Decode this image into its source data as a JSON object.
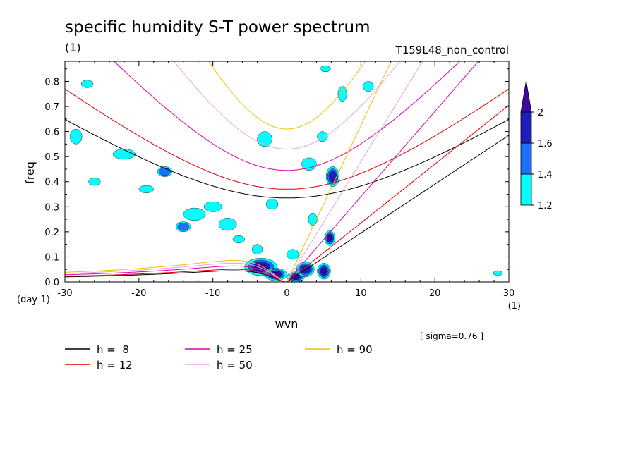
{
  "chart_data": {
    "type": "heatmap",
    "title": "specific humidity S-T power spectrum",
    "subtitle": "(1)",
    "run_label": "T159L48_non_control",
    "xlabel": "wvn",
    "ylabel": "freq",
    "x_unit": "(1)",
    "y_unit": "(day-1)",
    "note": "[ sigma=0.76 ]",
    "xlim": [
      -30,
      30
    ],
    "ylim": [
      0,
      0.88
    ],
    "x_ticks": [
      "-30",
      "-20",
      "-10",
      "0",
      "10",
      "20",
      "30"
    ],
    "x_tick_values": [
      -30,
      -20,
      -10,
      0,
      10,
      20,
      30
    ],
    "y_ticks": [
      "0.0",
      "0.1",
      "0.2",
      "0.3",
      "0.4",
      "0.5",
      "0.6",
      "0.7",
      "0.8"
    ],
    "y_tick_values": [
      0,
      0.1,
      0.2,
      0.3,
      0.4,
      0.5,
      0.6,
      0.7,
      0.8
    ],
    "colorbar": {
      "levels": [
        "1.2",
        "1.4",
        "1.6",
        "2"
      ],
      "level_values": [
        1.2,
        1.4,
        1.6,
        2.0
      ],
      "colors": [
        "#00ffff",
        "#1e6eff",
        "#1e1ebe",
        "#3c0aa0"
      ]
    },
    "legend": [
      {
        "label": "h =  8",
        "color": "#000000"
      },
      {
        "label": "h = 12",
        "color": "#e00000"
      },
      {
        "label": "h = 25",
        "color": "#e000b0"
      },
      {
        "label": "h = 50",
        "color": "#e8a0e8"
      },
      {
        "label": "h = 90",
        "color": "#f0c000"
      }
    ],
    "dispersion_lines": [
      {
        "h": 8,
        "kelvin_slope": 0.0195,
        "er_peak": 0.055,
        "ig_min": 0.335,
        "ig_slope": 0.0185
      },
      {
        "h": 12,
        "kelvin_slope": 0.0235,
        "er_peak": 0.062,
        "ig_min": 0.37,
        "ig_slope": 0.0225
      },
      {
        "h": 25,
        "kelvin_slope": 0.034,
        "er_peak": 0.078,
        "ig_min": 0.445,
        "ig_slope": 0.0325
      },
      {
        "h": 50,
        "kelvin_slope": 0.048,
        "er_peak": 0.092,
        "ig_min": 0.53,
        "ig_slope": 0.046
      },
      {
        "h": 90,
        "kelvin_slope": 0.0625,
        "er_peak": 0.105,
        "ig_min": 0.61,
        "ig_slope": 0.06
      }
    ],
    "blobs": [
      {
        "x": -3.5,
        "y": 0.06,
        "rx": 2.2,
        "ry": 0.035,
        "level": 4
      },
      {
        "x": -1.5,
        "y": 0.03,
        "rx": 1.5,
        "ry": 0.025,
        "level": 4
      },
      {
        "x": 1.2,
        "y": 0.02,
        "rx": 1.2,
        "ry": 0.02,
        "level": 4
      },
      {
        "x": 2.5,
        "y": 0.05,
        "rx": 1.2,
        "ry": 0.03,
        "level": 3
      },
      {
        "x": 5.0,
        "y": 0.043,
        "rx": 0.9,
        "ry": 0.032,
        "level": 4
      },
      {
        "x": 5.8,
        "y": 0.175,
        "rx": 0.7,
        "ry": 0.03,
        "level": 4
      },
      {
        "x": 6.2,
        "y": 0.42,
        "rx": 0.9,
        "ry": 0.04,
        "level": 3
      },
      {
        "x": -4.0,
        "y": 0.13,
        "rx": 0.7,
        "ry": 0.02,
        "level": 1
      },
      {
        "x": -8.0,
        "y": 0.23,
        "rx": 1.2,
        "ry": 0.025,
        "level": 1
      },
      {
        "x": -12.5,
        "y": 0.27,
        "rx": 1.5,
        "ry": 0.025,
        "level": 1
      },
      {
        "x": -14.0,
        "y": 0.22,
        "rx": 1.0,
        "ry": 0.02,
        "level": 2
      },
      {
        "x": -10.0,
        "y": 0.3,
        "rx": 1.2,
        "ry": 0.02,
        "level": 1
      },
      {
        "x": -16.5,
        "y": 0.44,
        "rx": 1.0,
        "ry": 0.02,
        "level": 2
      },
      {
        "x": -22.0,
        "y": 0.51,
        "rx": 1.5,
        "ry": 0.02,
        "level": 1
      },
      {
        "x": -26.0,
        "y": 0.4,
        "rx": 0.8,
        "ry": 0.015,
        "level": 1
      },
      {
        "x": -28.5,
        "y": 0.58,
        "rx": 0.8,
        "ry": 0.03,
        "level": 1
      },
      {
        "x": -27.0,
        "y": 0.79,
        "rx": 0.8,
        "ry": 0.015,
        "level": 1
      },
      {
        "x": -3.0,
        "y": 0.57,
        "rx": 1.0,
        "ry": 0.03,
        "level": 1
      },
      {
        "x": 3.0,
        "y": 0.47,
        "rx": 1.0,
        "ry": 0.025,
        "level": 1
      },
      {
        "x": 4.8,
        "y": 0.58,
        "rx": 0.7,
        "ry": 0.02,
        "level": 1
      },
      {
        "x": 7.5,
        "y": 0.75,
        "rx": 0.6,
        "ry": 0.03,
        "level": 1
      },
      {
        "x": 11.0,
        "y": 0.78,
        "rx": 0.7,
        "ry": 0.02,
        "level": 1
      },
      {
        "x": 5.2,
        "y": 0.85,
        "rx": 0.7,
        "ry": 0.012,
        "level": 1
      },
      {
        "x": -2.0,
        "y": 0.31,
        "rx": 0.8,
        "ry": 0.02,
        "level": 1
      },
      {
        "x": 0.8,
        "y": 0.11,
        "rx": 0.8,
        "ry": 0.02,
        "level": 1
      },
      {
        "x": 3.5,
        "y": 0.25,
        "rx": 0.6,
        "ry": 0.025,
        "level": 1
      },
      {
        "x": -6.5,
        "y": 0.17,
        "rx": 0.8,
        "ry": 0.015,
        "level": 1
      },
      {
        "x": -19.0,
        "y": 0.37,
        "rx": 1.0,
        "ry": 0.015,
        "level": 1
      },
      {
        "x": 28.5,
        "y": 0.035,
        "rx": 0.6,
        "ry": 0.01,
        "level": 1
      }
    ]
  }
}
